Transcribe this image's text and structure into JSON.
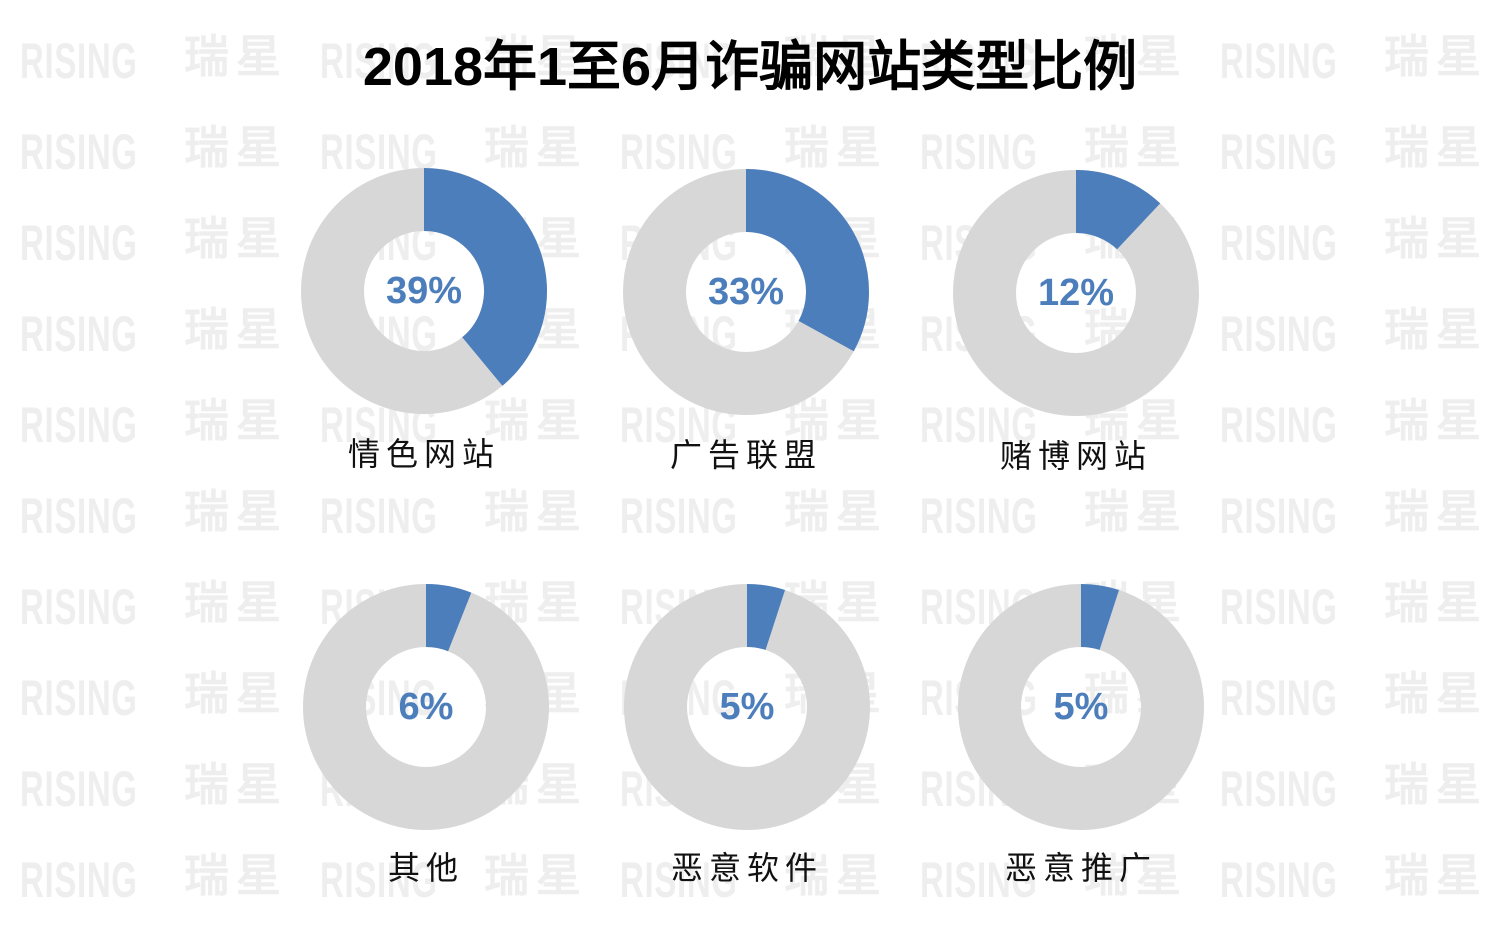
{
  "title": "2018年1至6月诈骗网站类型比例",
  "watermark": {
    "latin": "RISING",
    "cjk": "瑞星",
    "color": "#eeeeee"
  },
  "colors": {
    "slice": "#4d7ebc",
    "track": "#d7d7d7",
    "percent_text": "#4d7ebc",
    "label_text": "#111111",
    "title_text": "#000000"
  },
  "chart_data": {
    "type": "pie",
    "variant": "donut_small_multiples",
    "title": "2018年1至6月诈骗网站类型比例",
    "unit": "%",
    "legend": "none",
    "slice_start": "top",
    "direction": "clockwise",
    "categories": [
      "情色网站",
      "广告联盟",
      "赌博网站",
      "其他",
      "恶意软件",
      "恶意推广"
    ],
    "values": [
      39,
      33,
      12,
      6,
      5,
      5
    ],
    "charts": [
      {
        "label": "情色网站",
        "value": 39,
        "display": "39%"
      },
      {
        "label": "广告联盟",
        "value": 33,
        "display": "33%"
      },
      {
        "label": "赌博网站",
        "value": 12,
        "display": "12%"
      },
      {
        "label": "其他",
        "value": 6,
        "display": "6%"
      },
      {
        "label": "恶意软件",
        "value": 5,
        "display": "5%"
      },
      {
        "label": "恶意推广",
        "value": 5,
        "display": "5%"
      }
    ]
  }
}
